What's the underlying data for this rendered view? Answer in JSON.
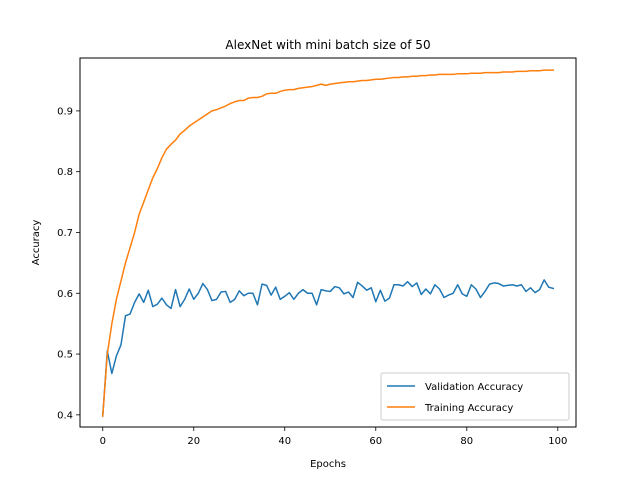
{
  "chart_data": {
    "type": "line",
    "title": "AlexNet with mini batch size of 50",
    "xlabel": "Epochs",
    "ylabel": "Accuracy",
    "xlim": [
      -5,
      104
    ],
    "ylim": [
      0.38,
      0.987
    ],
    "xticks": [
      0,
      20,
      40,
      60,
      80,
      100
    ],
    "yticks": [
      0.4,
      0.5,
      0.6,
      0.7,
      0.8,
      0.9
    ],
    "ytick_labels": [
      "0.4",
      "0.5",
      "0.6",
      "0.7",
      "0.8",
      "0.9"
    ],
    "grid": false,
    "legend_position": "lower-right",
    "series": [
      {
        "name": "Validation Accuracy",
        "color": "#1f77b4",
        "values": [
          0.398,
          0.505,
          0.468,
          0.497,
          0.515,
          0.563,
          0.566,
          0.585,
          0.599,
          0.585,
          0.605,
          0.578,
          0.582,
          0.592,
          0.581,
          0.575,
          0.606,
          0.578,
          0.59,
          0.607,
          0.59,
          0.6,
          0.616,
          0.606,
          0.588,
          0.59,
          0.602,
          0.603,
          0.585,
          0.59,
          0.604,
          0.596,
          0.6,
          0.6,
          0.581,
          0.615,
          0.613,
          0.597,
          0.61,
          0.59,
          0.595,
          0.601,
          0.59,
          0.6,
          0.606,
          0.6,
          0.6,
          0.581,
          0.606,
          0.604,
          0.603,
          0.611,
          0.609,
          0.599,
          0.602,
          0.593,
          0.618,
          0.612,
          0.605,
          0.609,
          0.586,
          0.605,
          0.587,
          0.592,
          0.614,
          0.614,
          0.612,
          0.619,
          0.611,
          0.617,
          0.598,
          0.607,
          0.599,
          0.614,
          0.607,
          0.593,
          0.597,
          0.6,
          0.614,
          0.599,
          0.595,
          0.614,
          0.607,
          0.593,
          0.603,
          0.615,
          0.617,
          0.616,
          0.612,
          0.613,
          0.614,
          0.612,
          0.614,
          0.603,
          0.609,
          0.601,
          0.606,
          0.622,
          0.61,
          0.608
        ]
      },
      {
        "name": "Training Accuracy",
        "color": "#ff7f0e",
        "values": [
          0.398,
          0.5,
          0.55,
          0.59,
          0.62,
          0.65,
          0.675,
          0.7,
          0.73,
          0.75,
          0.77,
          0.79,
          0.805,
          0.823,
          0.837,
          0.845,
          0.852,
          0.862,
          0.868,
          0.875,
          0.88,
          0.885,
          0.89,
          0.895,
          0.9,
          0.902,
          0.905,
          0.908,
          0.912,
          0.915,
          0.917,
          0.917,
          0.921,
          0.922,
          0.922,
          0.924,
          0.928,
          0.929,
          0.929,
          0.932,
          0.934,
          0.935,
          0.935,
          0.937,
          0.938,
          0.939,
          0.94,
          0.942,
          0.944,
          0.942,
          0.944,
          0.945,
          0.946,
          0.947,
          0.948,
          0.948,
          0.949,
          0.95,
          0.95,
          0.951,
          0.952,
          0.952,
          0.953,
          0.954,
          0.955,
          0.955,
          0.956,
          0.956,
          0.957,
          0.957,
          0.958,
          0.958,
          0.959,
          0.959,
          0.96,
          0.96,
          0.96,
          0.96,
          0.961,
          0.961,
          0.961,
          0.962,
          0.962,
          0.962,
          0.963,
          0.963,
          0.963,
          0.963,
          0.964,
          0.964,
          0.964,
          0.965,
          0.965,
          0.965,
          0.966,
          0.966,
          0.966,
          0.967,
          0.967,
          0.967
        ]
      }
    ]
  }
}
